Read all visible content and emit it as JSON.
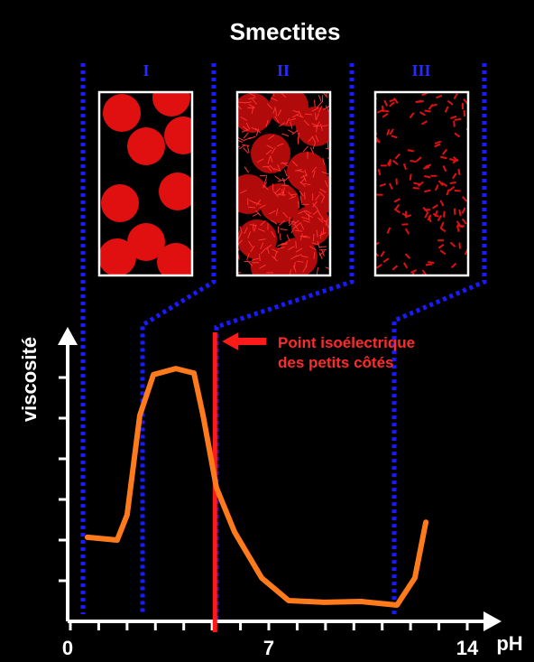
{
  "chart_data": {
    "type": "line",
    "title": "Smectites",
    "zones": [
      "I",
      "II",
      "III"
    ],
    "y_label": "viscosité",
    "x_label": "pH",
    "xlim": [
      0,
      14
    ],
    "xticks": [
      0,
      7,
      14
    ],
    "ylim": [
      0,
      7
    ],
    "isoelectric_ph": 5.1,
    "annotation": [
      "Point isoélectrique",
      "des petits côtés"
    ],
    "series": [
      {
        "color": "#ff7a1a",
        "x": [
          0.6,
          1.65,
          2.0,
          2.45,
          2.93,
          3.72,
          4.36,
          4.68,
          5.15,
          5.79,
          6.75,
          7.7,
          8.97,
          10.25,
          11.52,
          12.15,
          12.54
        ],
        "values": [
          2.07,
          2.0,
          2.62,
          5.07,
          6.07,
          6.22,
          6.11,
          5.07,
          3.29,
          2.2,
          1.07,
          0.51,
          0.47,
          0.49,
          0.4,
          1.07,
          2.44
        ]
      }
    ]
  }
}
